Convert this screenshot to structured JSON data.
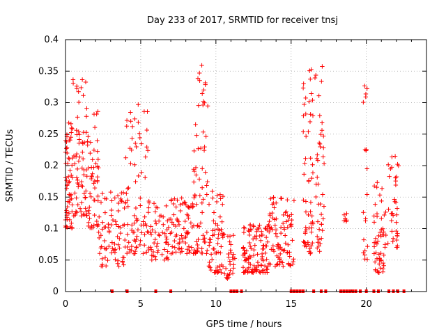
{
  "chart_data": {
    "type": "scatter",
    "title": "Day 233 of 2017, SRMTID for receiver tnsj",
    "xlabel": "GPS time / hours",
    "ylabel": "SRMTID / TECUs",
    "xlim": [
      0,
      24
    ],
    "ylim": [
      0,
      0.4
    ],
    "x_ticks": [
      "0",
      "5",
      "10",
      "15",
      "20"
    ],
    "y_ticks": [
      "0",
      "0.05",
      "0.1",
      "0.15",
      "0.2",
      "0.25",
      "0.3",
      "0.35",
      "0.4"
    ],
    "grid": true,
    "legend": "none",
    "marker": "+",
    "color": "#ff0000",
    "clusters": [
      {
        "x0": 0.0,
        "x1": 0.5,
        "ymin": 0.1,
        "ymax": 0.28,
        "n": 60
      },
      {
        "x0": 0.5,
        "x1": 1.5,
        "ymin": 0.12,
        "ymax": 0.34,
        "n": 70
      },
      {
        "x0": 1.5,
        "x1": 2.2,
        "ymin": 0.1,
        "ymax": 0.3,
        "n": 50
      },
      {
        "x0": 2.2,
        "x1": 4.0,
        "ymin": 0.04,
        "ymax": 0.16,
        "n": 80
      },
      {
        "x0": 4.0,
        "x1": 5.5,
        "ymin": 0.06,
        "ymax": 0.3,
        "n": 80
      },
      {
        "x0": 5.5,
        "x1": 7.0,
        "ymin": 0.05,
        "ymax": 0.15,
        "n": 60
      },
      {
        "x0": 7.0,
        "x1": 8.5,
        "ymin": 0.06,
        "ymax": 0.15,
        "n": 70
      },
      {
        "x0": 8.5,
        "x1": 9.5,
        "ymin": 0.06,
        "ymax": 0.37,
        "n": 70
      },
      {
        "x0": 9.5,
        "x1": 10.5,
        "ymin": 0.03,
        "ymax": 0.16,
        "n": 60
      },
      {
        "x0": 10.5,
        "x1": 11.3,
        "ymin": 0.02,
        "ymax": 0.1,
        "n": 30
      },
      {
        "x0": 11.8,
        "x1": 13.5,
        "ymin": 0.03,
        "ymax": 0.11,
        "n": 110
      },
      {
        "x0": 13.5,
        "x1": 15.2,
        "ymin": 0.04,
        "ymax": 0.15,
        "n": 90
      },
      {
        "x0": 15.8,
        "x1": 17.2,
        "ymin": 0.06,
        "ymax": 0.36,
        "n": 100
      },
      {
        "x0": 18.5,
        "x1": 18.7,
        "ymin": 0.11,
        "ymax": 0.13,
        "n": 6
      },
      {
        "x0": 19.8,
        "x1": 20.1,
        "ymin": 0.05,
        "ymax": 0.34,
        "n": 20
      },
      {
        "x0": 20.5,
        "x1": 21.2,
        "ymin": 0.03,
        "ymax": 0.18,
        "n": 50
      },
      {
        "x0": 21.2,
        "x1": 22.2,
        "ymin": 0.07,
        "ymax": 0.22,
        "n": 40
      }
    ],
    "zero_markers_x": [
      3.1,
      4.1,
      6.0,
      7.0,
      11.0,
      11.2,
      11.4,
      11.7,
      15.0,
      15.2,
      15.4,
      15.6,
      15.8,
      16.5,
      17.0,
      17.3,
      18.3,
      18.5,
      18.7,
      18.9,
      19.1,
      19.3,
      19.6,
      20.0,
      20.5,
      20.8,
      21.5,
      21.8,
      22.1,
      22.5
    ]
  }
}
